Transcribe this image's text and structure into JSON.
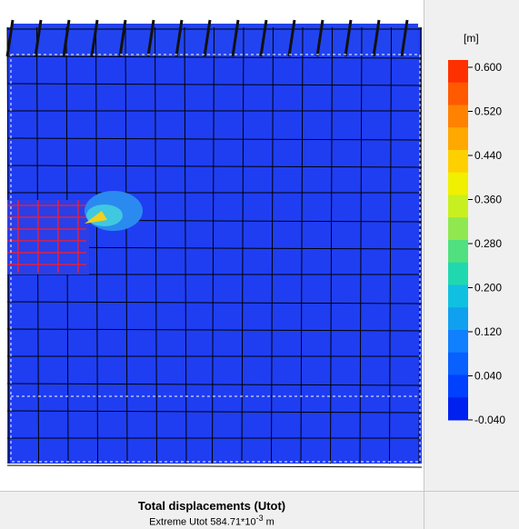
{
  "legend": {
    "unit": "[m]",
    "labels": [
      "0.600",
      "0.520",
      "0.440",
      "0.360",
      "0.280",
      "0.200",
      "0.120",
      "0.040",
      "-0.040"
    ]
  },
  "caption": {
    "title": "Total displacements (Utot)",
    "extreme": "Extreme Utot 584.71*10",
    "exponent": "-3",
    "unit": "m"
  }
}
